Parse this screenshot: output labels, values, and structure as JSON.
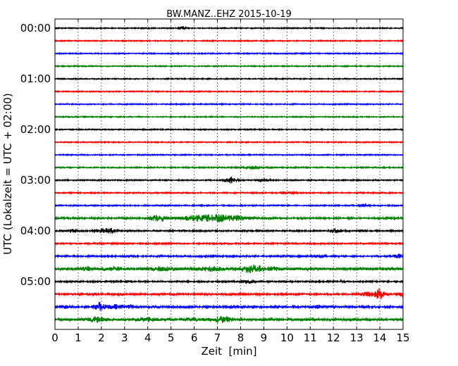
{
  "chart_data": {
    "type": "line",
    "title": "BW.MANZ..EHZ 2015-10-19",
    "xlabel": "Zeit  [min]",
    "ylabel": "UTC (Lokalzeit = UTC + 02:00)",
    "xlim": [
      0,
      15
    ],
    "xticks": [
      "0",
      "1",
      "2",
      "3",
      "4",
      "5",
      "6",
      "7",
      "8",
      "9",
      "10",
      "11",
      "12",
      "13",
      "14",
      "15"
    ],
    "yticks": [
      "00:00",
      "01:00",
      "02:00",
      "03:00",
      "04:00",
      "05:00"
    ],
    "trace_minutes": 15,
    "grid": "vertical dotted",
    "colors": [
      "#000000",
      "#ff0000",
      "#0000ff",
      "#008000"
    ],
    "traces": [
      {
        "start": "00:00",
        "noise": 0.8,
        "events": [
          [
            5.5,
            2.5,
            0.08
          ]
        ]
      },
      {
        "start": "00:15",
        "noise": 0.8,
        "events": []
      },
      {
        "start": "00:30",
        "noise": 0.8,
        "events": []
      },
      {
        "start": "00:45",
        "noise": 0.8,
        "events": []
      },
      {
        "start": "01:00",
        "noise": 0.8,
        "events": []
      },
      {
        "start": "01:15",
        "noise": 0.8,
        "events": []
      },
      {
        "start": "01:30",
        "noise": 0.8,
        "events": []
      },
      {
        "start": "01:45",
        "noise": 0.8,
        "events": []
      },
      {
        "start": "02:00",
        "noise": 0.8,
        "events": []
      },
      {
        "start": "02:15",
        "noise": 0.8,
        "events": []
      },
      {
        "start": "02:30",
        "noise": 0.8,
        "events": []
      },
      {
        "start": "02:45",
        "noise": 0.9,
        "events": [
          [
            8.5,
            1.5,
            0.3
          ]
        ]
      },
      {
        "start": "03:00",
        "noise": 0.9,
        "events": [
          [
            7.6,
            4.5,
            0.15
          ],
          [
            9.0,
            1.5,
            0.2
          ]
        ]
      },
      {
        "start": "03:15",
        "noise": 0.9,
        "events": [
          [
            10.0,
            1.5,
            0.2
          ]
        ]
      },
      {
        "start": "03:30",
        "noise": 0.9,
        "events": [
          [
            13.3,
            1.5,
            0.15
          ]
        ]
      },
      {
        "start": "03:45",
        "noise": 1.3,
        "events": [
          [
            4.5,
            4,
            0.3
          ],
          [
            6.0,
            3,
            0.4
          ],
          [
            7.0,
            4.5,
            0.5
          ],
          [
            8.0,
            2,
            0.3
          ]
        ]
      },
      {
        "start": "04:00",
        "noise": 1.1,
        "events": [
          [
            0.8,
            2,
            0.15
          ],
          [
            2.0,
            2.5,
            0.2
          ],
          [
            2.4,
            4,
            0.15
          ],
          [
            12.1,
            3.5,
            0.15
          ]
        ]
      },
      {
        "start": "04:15",
        "noise": 1.1,
        "events": []
      },
      {
        "start": "04:30",
        "noise": 1.2,
        "events": [
          [
            11.3,
            1.5,
            0.15
          ],
          [
            15.0,
            3,
            0.3
          ]
        ]
      },
      {
        "start": "04:45",
        "noise": 2,
        "events": [
          [
            1.4,
            2,
            0.2
          ],
          [
            2.5,
            2,
            0.3
          ],
          [
            4.5,
            2,
            0.4
          ],
          [
            6.7,
            2,
            0.4
          ],
          [
            8.5,
            4.5,
            0.4
          ],
          [
            9.5,
            1.5,
            0.2
          ]
        ]
      },
      {
        "start": "05:00",
        "noise": 1.1,
        "events": [
          [
            8.3,
            2.5,
            0.15
          ],
          [
            12.3,
            1,
            0.1
          ]
        ]
      },
      {
        "start": "05:15",
        "noise": 1.3,
        "events": [
          [
            1.6,
            1.5,
            0.1
          ],
          [
            2.8,
            1.5,
            0.1
          ],
          [
            13.5,
            3,
            0.2
          ],
          [
            14.0,
            7,
            0.15
          ],
          [
            15.0,
            4,
            0.1
          ]
        ]
      },
      {
        "start": "05:30",
        "noise": 1.5,
        "events": [
          [
            0.4,
            1.5,
            0.15
          ],
          [
            1.9,
            5.5,
            0.15
          ],
          [
            2.6,
            2.5,
            0.3
          ],
          [
            3.3,
            2.5,
            0.1
          ],
          [
            11.3,
            2,
            0.15
          ]
        ]
      },
      {
        "start": "05:45",
        "noise": 1.6,
        "events": [
          [
            1.8,
            3,
            0.3
          ],
          [
            4.0,
            2.5,
            0.3
          ],
          [
            6.0,
            2,
            0.3
          ],
          [
            7.2,
            4,
            0.3
          ],
          [
            9.0,
            1.5,
            0.1
          ]
        ]
      }
    ]
  }
}
